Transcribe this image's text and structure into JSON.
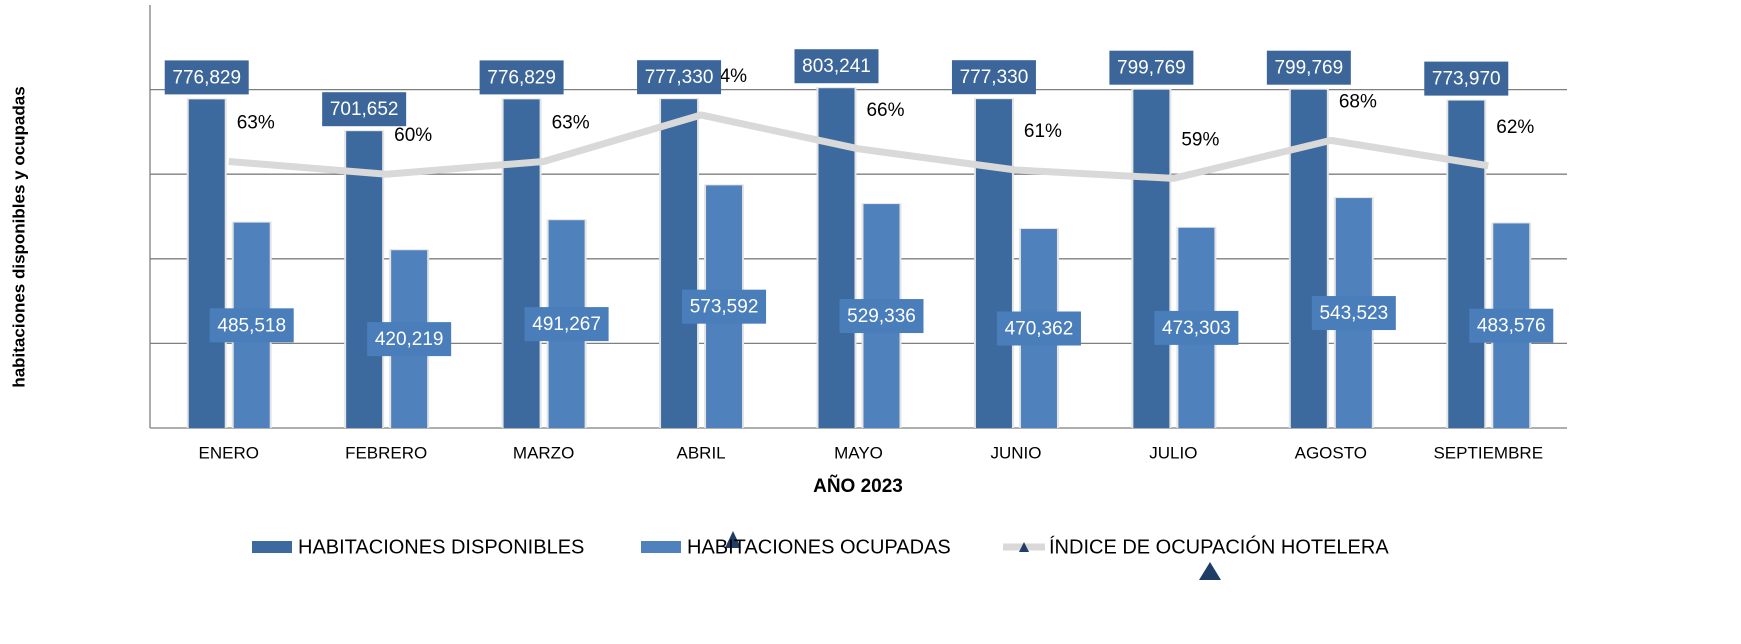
{
  "chart_data": {
    "type": "bar",
    "categories": [
      "ENERO",
      "FEBRERO",
      "MARZO",
      "ABRIL",
      "MAYO",
      "JUNIO",
      "JULIO",
      "AGOSTO",
      "SEPTIEMBRE"
    ],
    "series": [
      {
        "name": "HABITACIONES DISPONIBLES",
        "type": "bar",
        "color": "#3d6a9e",
        "values": [
          776829,
          701652,
          776829,
          777330,
          803241,
          777330,
          799769,
          799769,
          773970
        ],
        "value_labels": [
          "776,829",
          "701,652",
          "776,829",
          "777,330",
          "803,241",
          "777,330",
          "799,769",
          "799,769",
          "773,970"
        ]
      },
      {
        "name": "HABITACIONES OCUPADAS",
        "type": "bar",
        "color": "#4f81bd",
        "values": [
          485518,
          420219,
          491267,
          573592,
          529336,
          470362,
          473303,
          543523,
          483576
        ],
        "value_labels": [
          "485,518",
          "420,219",
          "491,267",
          "573,592",
          "529,336",
          "470,362",
          "473,303",
          "543,523",
          "483,576"
        ]
      },
      {
        "name": "ÍNDICE DE OCUPACIÓN HOTELERA",
        "type": "line",
        "axis": "y2",
        "color": "#d9d9d9",
        "values": [
          63,
          60,
          63,
          74,
          66,
          61,
          59,
          68,
          62
        ],
        "value_labels": [
          "63%",
          "60%",
          "63%",
          "74%",
          "66%",
          "61%",
          "59%",
          "68%",
          "62%"
        ]
      }
    ],
    "x_label": "AÑO 2023",
    "y_label": "habitaciones disponibles y ocupadas",
    "ylim": [
      0,
      1000000
    ],
    "yticks": [
      0,
      200000,
      400000,
      600000,
      800000,
      1000000
    ],
    "y2lim": [
      0,
      100
    ],
    "grid": true,
    "legend": "bottom"
  }
}
